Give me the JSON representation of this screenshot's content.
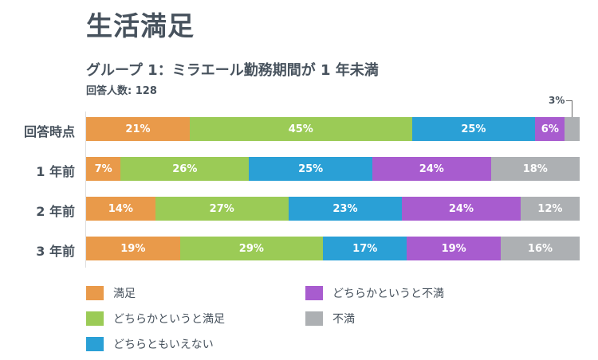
{
  "title": "生活満足",
  "subtitle": "グループ 1：ミラエール勤務期間が 1 年未満",
  "respondents": "回答人数: 128",
  "chart_data": {
    "type": "bar",
    "orientation": "horizontal-stacked-100",
    "categories": [
      "回答時点",
      "1 年前",
      "2 年前",
      "3 年前"
    ],
    "series": [
      {
        "name": "満足",
        "color": "#e99a4a",
        "values": [
          21,
          7,
          14,
          19
        ]
      },
      {
        "name": "どちらかというと満足",
        "color": "#9bcb56",
        "values": [
          45,
          26,
          27,
          29
        ]
      },
      {
        "name": "どちらともいえない",
        "color": "#2aa0d6",
        "values": [
          25,
          25,
          23,
          17
        ]
      },
      {
        "name": "どちらかというと不満",
        "color": "#a85ccf",
        "values": [
          6,
          24,
          24,
          19
        ]
      },
      {
        "name": "不満",
        "color": "#adb0b3",
        "values": [
          3,
          18,
          12,
          16
        ]
      }
    ],
    "value_suffix": "%",
    "callout": "3%",
    "xlim": [
      0,
      100
    ]
  }
}
